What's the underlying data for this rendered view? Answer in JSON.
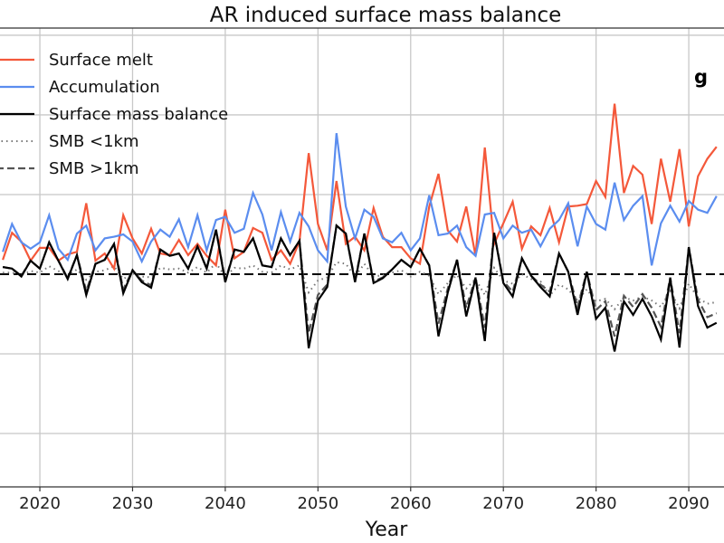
{
  "chart_data": {
    "type": "line",
    "title": "AR induced surface mass balance",
    "panel_label": "g",
    "xlabel": "Year",
    "ylabel": "",
    "xlim": [
      2015.7,
      2093.8
    ],
    "ylim": [
      -2.67,
      3.09
    ],
    "x_ticks": [
      2020,
      2030,
      2040,
      2050,
      2060,
      2070,
      2080,
      2090
    ],
    "y_gridlines": [
      -2,
      -1,
      1,
      2,
      3
    ],
    "grid": true,
    "reference_line": {
      "y": 0,
      "style": "dashed",
      "color": "#000000"
    },
    "legend_placement": "top-left",
    "x_start": 2016,
    "x_step": 1,
    "series": [
      {
        "name": "Surface melt",
        "color": "#f4583a",
        "style": "solid",
        "values": [
          0.18,
          0.52,
          0.41,
          0.17,
          0.33,
          0.33,
          0.17,
          0.25,
          0.28,
          0.89,
          0.17,
          0.26,
          0.07,
          0.74,
          0.45,
          0.26,
          0.57,
          0.26,
          0.24,
          0.43,
          0.24,
          0.38,
          0.23,
          0.11,
          0.81,
          0.2,
          0.28,
          0.58,
          0.52,
          0.18,
          0.3,
          0.13,
          0.41,
          1.52,
          0.63,
          0.3,
          1.17,
          0.38,
          0.47,
          0.3,
          0.83,
          0.47,
          0.34,
          0.34,
          0.2,
          0.13,
          0.85,
          1.26,
          0.55,
          0.41,
          0.85,
          0.23,
          1.59,
          0.38,
          0.64,
          0.91,
          0.32,
          0.6,
          0.49,
          0.83,
          0.4,
          0.85,
          0.86,
          0.88,
          1.17,
          0.97,
          2.14,
          1.02,
          1.36,
          1.25,
          0.63,
          1.45,
          0.91,
          1.57,
          0.6,
          1.23,
          1.45,
          1.6
        ]
      },
      {
        "name": "Accumulation",
        "color": "#5b8def",
        "style": "solid",
        "values": [
          0.28,
          0.63,
          0.4,
          0.32,
          0.4,
          0.74,
          0.32,
          0.18,
          0.51,
          0.61,
          0.3,
          0.45,
          0.47,
          0.5,
          0.41,
          0.16,
          0.41,
          0.56,
          0.47,
          0.69,
          0.34,
          0.74,
          0.3,
          0.68,
          0.72,
          0.52,
          0.57,
          1.02,
          0.75,
          0.3,
          0.78,
          0.41,
          0.77,
          0.6,
          0.3,
          0.16,
          1.77,
          0.85,
          0.45,
          0.81,
          0.72,
          0.45,
          0.4,
          0.52,
          0.3,
          0.45,
          0.99,
          0.49,
          0.51,
          0.61,
          0.34,
          0.23,
          0.75,
          0.77,
          0.45,
          0.61,
          0.52,
          0.56,
          0.35,
          0.57,
          0.68,
          0.89,
          0.35,
          0.85,
          0.63,
          0.56,
          1.15,
          0.68,
          0.86,
          0.98,
          0.11,
          0.64,
          0.86,
          0.66,
          0.92,
          0.81,
          0.77,
          0.98
        ]
      },
      {
        "name": "Surface mass balance",
        "color": "#000000",
        "style": "solid",
        "values": [
          0.09,
          0.07,
          -0.03,
          0.17,
          0.07,
          0.4,
          0.17,
          -0.06,
          0.24,
          -0.26,
          0.13,
          0.18,
          0.38,
          -0.24,
          0.05,
          -0.1,
          -0.17,
          0.31,
          0.23,
          0.26,
          0.07,
          0.35,
          0.07,
          0.56,
          -0.1,
          0.31,
          0.28,
          0.45,
          0.11,
          0.09,
          0.45,
          0.24,
          0.42,
          -0.93,
          -0.33,
          -0.16,
          0.61,
          0.51,
          -0.1,
          0.51,
          -0.11,
          -0.05,
          0.06,
          0.18,
          0.09,
          0.32,
          0.11,
          -0.78,
          -0.23,
          0.18,
          -0.53,
          -0.05,
          -0.84,
          0.52,
          -0.11,
          -0.28,
          0.2,
          -0.02,
          -0.16,
          -0.28,
          0.26,
          0.03,
          -0.51,
          0.03,
          -0.56,
          -0.42,
          -0.97,
          -0.34,
          -0.51,
          -0.31,
          -0.53,
          -0.82,
          -0.05,
          -0.92,
          0.34,
          -0.4,
          -0.67,
          -0.61
        ]
      },
      {
        "name": "SMB <1km",
        "color": "#777777",
        "style": "dotted",
        "values": [
          0.02,
          0.02,
          -0.01,
          0.04,
          0.02,
          0.1,
          0.04,
          -0.02,
          0.06,
          -0.07,
          0.03,
          0.05,
          0.1,
          -0.06,
          0.01,
          -0.03,
          -0.04,
          0.08,
          0.06,
          0.07,
          0.02,
          0.09,
          0.02,
          0.14,
          -0.03,
          0.08,
          0.07,
          0.11,
          0.03,
          0.02,
          0.11,
          0.06,
          0.11,
          -0.23,
          -0.08,
          -0.04,
          0.15,
          0.13,
          -0.03,
          0.13,
          -0.03,
          -0.01,
          0.02,
          0.05,
          -0.03,
          0.03,
          -0.02,
          -0.25,
          -0.11,
          -0.01,
          -0.18,
          -0.06,
          -0.26,
          0.08,
          -0.08,
          -0.12,
          0.0,
          -0.06,
          -0.09,
          -0.27,
          -0.13,
          -0.19,
          -0.33,
          -0.19,
          -0.34,
          -0.31,
          -0.44,
          -0.29,
          -0.33,
          -0.28,
          -0.33,
          -0.41,
          -0.21,
          -0.43,
          -0.12,
          -0.3,
          -0.37,
          -0.35
        ]
      },
      {
        "name": "SMB >1km",
        "color": "#555555",
        "style": "dashed",
        "values": [
          0.09,
          0.07,
          -0.02,
          0.17,
          0.07,
          0.4,
          0.17,
          -0.05,
          0.24,
          -0.21,
          0.13,
          0.18,
          0.38,
          -0.19,
          0.05,
          -0.08,
          -0.14,
          0.31,
          0.23,
          0.26,
          0.07,
          0.35,
          0.07,
          0.56,
          -0.08,
          0.31,
          0.28,
          0.45,
          0.11,
          0.09,
          0.45,
          0.24,
          0.42,
          -0.74,
          -0.26,
          -0.13,
          0.61,
          0.51,
          -0.08,
          0.51,
          -0.09,
          -0.04,
          0.06,
          0.18,
          0.09,
          0.32,
          0.11,
          -0.62,
          -0.18,
          0.18,
          -0.42,
          -0.04,
          -0.67,
          0.52,
          -0.09,
          -0.22,
          0.2,
          -0.02,
          -0.13,
          -0.22,
          0.26,
          0.03,
          -0.41,
          0.03,
          -0.45,
          -0.34,
          -0.78,
          -0.27,
          -0.41,
          -0.25,
          -0.42,
          -0.66,
          -0.04,
          -0.74,
          0.34,
          -0.32,
          -0.54,
          -0.49
        ]
      }
    ]
  }
}
